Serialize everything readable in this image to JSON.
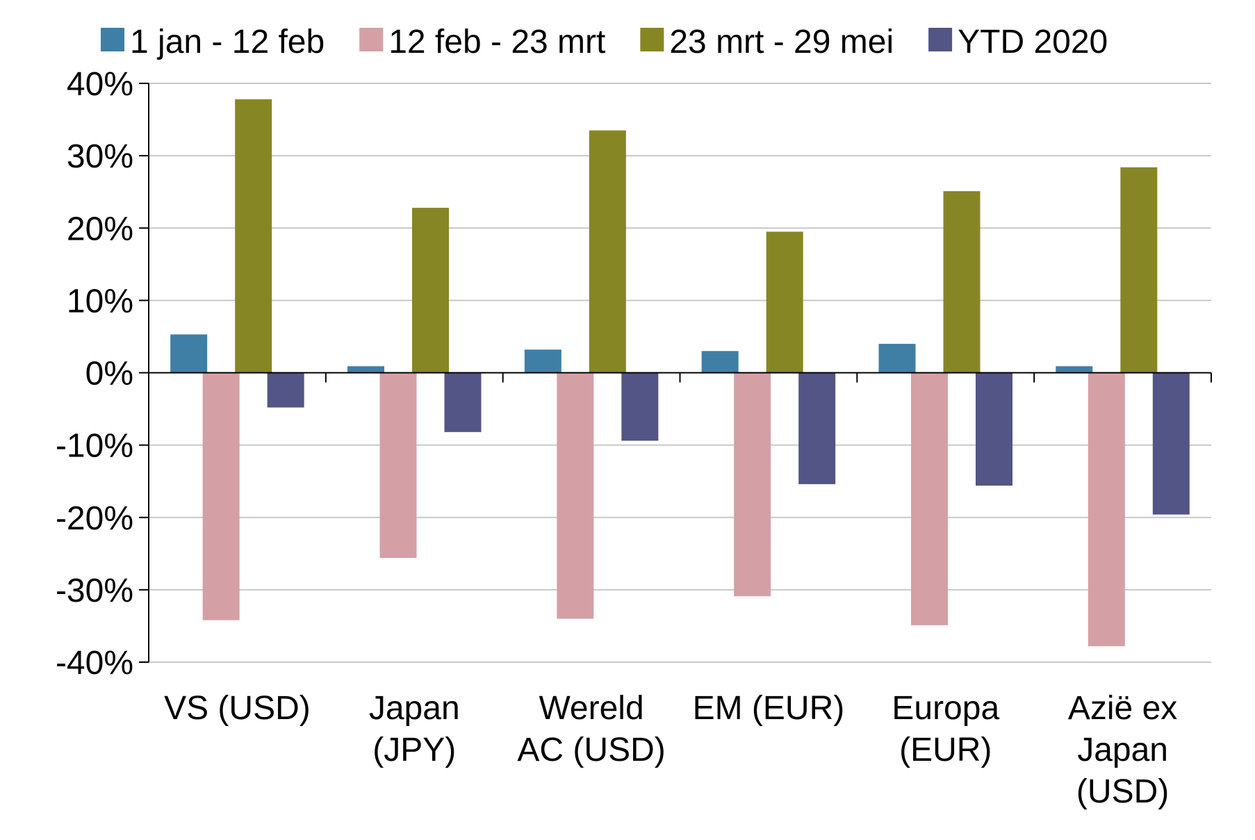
{
  "chart_data": {
    "type": "bar",
    "categories": [
      [
        "VS (USD)"
      ],
      [
        "Japan",
        "(JPY)"
      ],
      [
        "Wereld",
        "AC (USD)"
      ],
      [
        "EM (EUR)"
      ],
      [
        "Europa",
        "(EUR)"
      ],
      [
        "Azië ex",
        "Japan",
        "(USD)"
      ]
    ],
    "series": [
      {
        "name": "1 jan - 12 feb",
        "color": "#3f7fa6",
        "values": [
          5.3,
          0.9,
          3.2,
          3.0,
          4.0,
          0.9
        ]
      },
      {
        "name": "12 feb - 23 mrt",
        "color": "#d4a0a5",
        "values": [
          -34.2,
          -25.6,
          -34.0,
          -30.9,
          -34.9,
          -37.8
        ]
      },
      {
        "name": "23 mrt - 29 mei",
        "color": "#878625",
        "values": [
          37.8,
          22.8,
          33.5,
          19.5,
          25.1,
          28.4
        ]
      },
      {
        "name": "YTD 2020",
        "color": "#535586",
        "values": [
          -4.8,
          -8.2,
          -9.4,
          -15.4,
          -15.6,
          -19.6
        ]
      }
    ],
    "ylim": [
      -40,
      40
    ],
    "ytick_step": 10,
    "ytick_suffix": "%",
    "grid": true,
    "legend": "top",
    "title": "",
    "xlabel": "",
    "ylabel": ""
  }
}
